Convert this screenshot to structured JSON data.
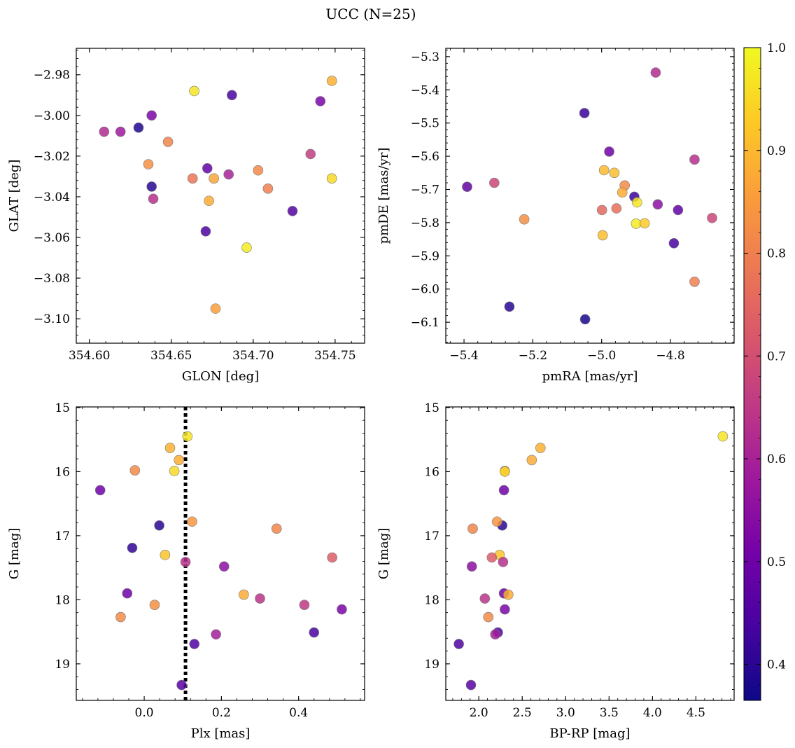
{
  "title": "UCC (N=25)",
  "colorbar": {
    "range": [
      0.365,
      1.0
    ],
    "ticks": [
      "0.4",
      "0.5",
      "0.6",
      "0.7",
      "0.8",
      "0.9",
      "1.0"
    ],
    "colormap": [
      "#0d0887",
      "#46039f",
      "#7201a8",
      "#9c179e",
      "#bd3786",
      "#d8576b",
      "#ed7953",
      "#fb9f3a",
      "#fdca26",
      "#f0f921"
    ]
  },
  "chart_data": [
    {
      "type": "scatter",
      "xlabel": "GLON [deg]",
      "ylabel": "GLAT [deg]",
      "xlim": [
        354.592,
        354.768
      ],
      "ylim": [
        -3.112,
        -2.967
      ],
      "x_ticks": [
        "354.60",
        "354.65",
        "354.70",
        "354.75"
      ],
      "y_ticks": [
        "−2.98",
        "−3.00",
        "−3.02",
        "−3.04",
        "−3.06",
        "−3.08",
        "−3.10"
      ],
      "points": [
        {
          "x": 354.609,
          "y": -3.008,
          "p": 0.62
        },
        {
          "x": 354.619,
          "y": -3.008,
          "p": 0.58
        },
        {
          "x": 354.63,
          "y": -3.006,
          "p": 0.39
        },
        {
          "x": 354.638,
          "y": -3.0,
          "p": 0.52
        },
        {
          "x": 354.636,
          "y": -3.024,
          "p": 0.83
        },
        {
          "x": 354.648,
          "y": -3.013,
          "p": 0.81
        },
        {
          "x": 354.638,
          "y": -3.035,
          "p": 0.4
        },
        {
          "x": 354.639,
          "y": -3.041,
          "p": 0.63
        },
        {
          "x": 354.664,
          "y": -2.988,
          "p": 0.97
        },
        {
          "x": 354.663,
          "y": -3.031,
          "p": 0.78
        },
        {
          "x": 354.672,
          "y": -3.026,
          "p": 0.48
        },
        {
          "x": 354.676,
          "y": -3.031,
          "p": 0.87
        },
        {
          "x": 354.673,
          "y": -3.042,
          "p": 0.88
        },
        {
          "x": 354.671,
          "y": -3.057,
          "p": 0.45
        },
        {
          "x": 354.677,
          "y": -3.095,
          "p": 0.86
        },
        {
          "x": 354.687,
          "y": -2.99,
          "p": 0.44
        },
        {
          "x": 354.685,
          "y": -3.029,
          "p": 0.6
        },
        {
          "x": 354.696,
          "y": -3.065,
          "p": 0.98
        },
        {
          "x": 354.703,
          "y": -3.027,
          "p": 0.82
        },
        {
          "x": 354.709,
          "y": -3.036,
          "p": 0.8
        },
        {
          "x": 354.724,
          "y": -3.047,
          "p": 0.46
        },
        {
          "x": 354.735,
          "y": -3.019,
          "p": 0.66
        },
        {
          "x": 354.741,
          "y": -2.993,
          "p": 0.52
        },
        {
          "x": 354.748,
          "y": -2.983,
          "p": 0.89
        },
        {
          "x": 354.748,
          "y": -3.031,
          "p": 0.95
        }
      ]
    },
    {
      "type": "scatter",
      "xlabel": "pmRA [mas/yr]",
      "ylabel": "pmDE [mas/yr]",
      "xlim": [
        -5.453,
        -4.615
      ],
      "ylim": [
        -6.163,
        -5.275
      ],
      "x_ticks": [
        "−5.4",
        "−5.2",
        "−5.0",
        "−4.8"
      ],
      "y_ticks": [
        "−5.3",
        "−5.4",
        "−5.5",
        "−5.6",
        "−5.7",
        "−5.8",
        "−5.9",
        "−6.0",
        "−6.1"
      ],
      "points": [
        {
          "x": -4.843,
          "y": -5.348,
          "p": 0.62
        },
        {
          "x": -5.05,
          "y": -5.47,
          "p": 0.42
        },
        {
          "x": -4.978,
          "y": -5.586,
          "p": 0.5
        },
        {
          "x": -4.73,
          "y": -5.61,
          "p": 0.63
        },
        {
          "x": -4.993,
          "y": -5.642,
          "p": 0.9
        },
        {
          "x": -4.963,
          "y": -5.65,
          "p": 0.91
        },
        {
          "x": -5.391,
          "y": -5.692,
          "p": 0.48
        },
        {
          "x": -5.312,
          "y": -5.68,
          "p": 0.68
        },
        {
          "x": -4.933,
          "y": -5.688,
          "p": 0.82
        },
        {
          "x": -4.94,
          "y": -5.709,
          "p": 0.88
        },
        {
          "x": -4.905,
          "y": -5.722,
          "p": 0.42
        },
        {
          "x": -4.897,
          "y": -5.739,
          "p": 0.97
        },
        {
          "x": -4.837,
          "y": -5.745,
          "p": 0.55
        },
        {
          "x": -4.999,
          "y": -5.762,
          "p": 0.75
        },
        {
          "x": -4.957,
          "y": -5.757,
          "p": 0.77
        },
        {
          "x": -4.778,
          "y": -5.762,
          "p": 0.48
        },
        {
          "x": -4.679,
          "y": -5.786,
          "p": 0.68
        },
        {
          "x": -5.225,
          "y": -5.79,
          "p": 0.83
        },
        {
          "x": -4.9,
          "y": -5.803,
          "p": 0.98
        },
        {
          "x": -4.875,
          "y": -5.802,
          "p": 0.93
        },
        {
          "x": -4.997,
          "y": -5.838,
          "p": 0.91
        },
        {
          "x": -4.79,
          "y": -5.862,
          "p": 0.44
        },
        {
          "x": -4.73,
          "y": -5.978,
          "p": 0.8
        },
        {
          "x": -5.268,
          "y": -6.053,
          "p": 0.4
        },
        {
          "x": -5.048,
          "y": -6.091,
          "p": 0.38
        }
      ]
    },
    {
      "type": "scatter",
      "xlabel": "Plx [mas]",
      "ylabel": "G [mag]",
      "xlim": [
        -0.176,
        0.571
      ],
      "ylim": [
        19.57,
        14.99
      ],
      "inverted_y": true,
      "vline_x": 0.107,
      "x_ticks": [
        "0.0",
        "0.2",
        "0.4"
      ],
      "y_ticks": [
        "15",
        "16",
        "17",
        "18",
        "19"
      ],
      "points": [
        {
          "x": 0.112,
          "y": 15.45,
          "p": 0.97
        },
        {
          "x": 0.067,
          "y": 15.63,
          "p": 0.89
        },
        {
          "x": 0.09,
          "y": 15.82,
          "p": 0.88
        },
        {
          "x": 0.078,
          "y": 15.99,
          "p": 0.95
        },
        {
          "x": -0.024,
          "y": 15.98,
          "p": 0.82
        },
        {
          "x": -0.114,
          "y": 16.29,
          "p": 0.5
        },
        {
          "x": 0.039,
          "y": 16.84,
          "p": 0.4
        },
        {
          "x": 0.124,
          "y": 16.78,
          "p": 0.84
        },
        {
          "x": 0.343,
          "y": 16.89,
          "p": 0.81
        },
        {
          "x": -0.031,
          "y": 17.19,
          "p": 0.41
        },
        {
          "x": 0.054,
          "y": 17.3,
          "p": 0.92
        },
        {
          "x": 0.107,
          "y": 17.41,
          "p": 0.63
        },
        {
          "x": 0.207,
          "y": 17.48,
          "p": 0.55
        },
        {
          "x": 0.487,
          "y": 17.34,
          "p": 0.73
        },
        {
          "x": -0.044,
          "y": 17.9,
          "p": 0.5
        },
        {
          "x": 0.258,
          "y": 17.92,
          "p": 0.88
        },
        {
          "x": 0.3,
          "y": 17.98,
          "p": 0.64
        },
        {
          "x": 0.027,
          "y": 18.08,
          "p": 0.83
        },
        {
          "x": 0.415,
          "y": 18.08,
          "p": 0.65
        },
        {
          "x": 0.512,
          "y": 18.15,
          "p": 0.52
        },
        {
          "x": -0.061,
          "y": 18.27,
          "p": 0.82
        },
        {
          "x": 0.44,
          "y": 18.51,
          "p": 0.44
        },
        {
          "x": 0.186,
          "y": 18.54,
          "p": 0.59
        },
        {
          "x": 0.13,
          "y": 18.69,
          "p": 0.45
        },
        {
          "x": 0.097,
          "y": 19.33,
          "p": 0.47
        }
      ]
    },
    {
      "type": "scatter",
      "xlabel": "BP-RP [mag]",
      "ylabel": "G [mag]",
      "xlim": [
        1.62,
        4.94
      ],
      "ylim": [
        19.57,
        14.99
      ],
      "inverted_y": true,
      "x_ticks": [
        "2.0",
        "2.5",
        "3.0",
        "3.5",
        "4.0",
        "4.5"
      ],
      "y_ticks": [
        "15",
        "16",
        "17",
        "18",
        "19"
      ],
      "points": [
        {
          "x": 4.81,
          "y": 15.45,
          "p": 0.97
        },
        {
          "x": 2.71,
          "y": 15.63,
          "p": 0.89
        },
        {
          "x": 2.61,
          "y": 15.82,
          "p": 0.88
        },
        {
          "x": 2.3,
          "y": 15.99,
          "p": 0.82
        },
        {
          "x": 2.3,
          "y": 16.0,
          "p": 0.95
        },
        {
          "x": 2.29,
          "y": 16.29,
          "p": 0.5
        },
        {
          "x": 2.27,
          "y": 16.84,
          "p": 0.4
        },
        {
          "x": 2.21,
          "y": 16.78,
          "p": 0.84
        },
        {
          "x": 1.93,
          "y": 16.89,
          "p": 0.81
        },
        {
          "x": 2.24,
          "y": 17.3,
          "p": 0.92
        },
        {
          "x": 2.15,
          "y": 17.34,
          "p": 0.73
        },
        {
          "x": 2.28,
          "y": 17.41,
          "p": 0.63
        },
        {
          "x": 1.92,
          "y": 17.48,
          "p": 0.55
        },
        {
          "x": 2.29,
          "y": 17.9,
          "p": 0.5
        },
        {
          "x": 2.34,
          "y": 17.92,
          "p": 0.88
        },
        {
          "x": 2.07,
          "y": 17.98,
          "p": 0.64
        },
        {
          "x": 2.3,
          "y": 18.15,
          "p": 0.52
        },
        {
          "x": 2.11,
          "y": 18.27,
          "p": 0.82
        },
        {
          "x": 2.22,
          "y": 18.51,
          "p": 0.44
        },
        {
          "x": 2.19,
          "y": 18.54,
          "p": 0.59
        },
        {
          "x": 1.77,
          "y": 18.69,
          "p": 0.45
        },
        {
          "x": 1.91,
          "y": 19.33,
          "p": 0.47
        }
      ]
    }
  ]
}
